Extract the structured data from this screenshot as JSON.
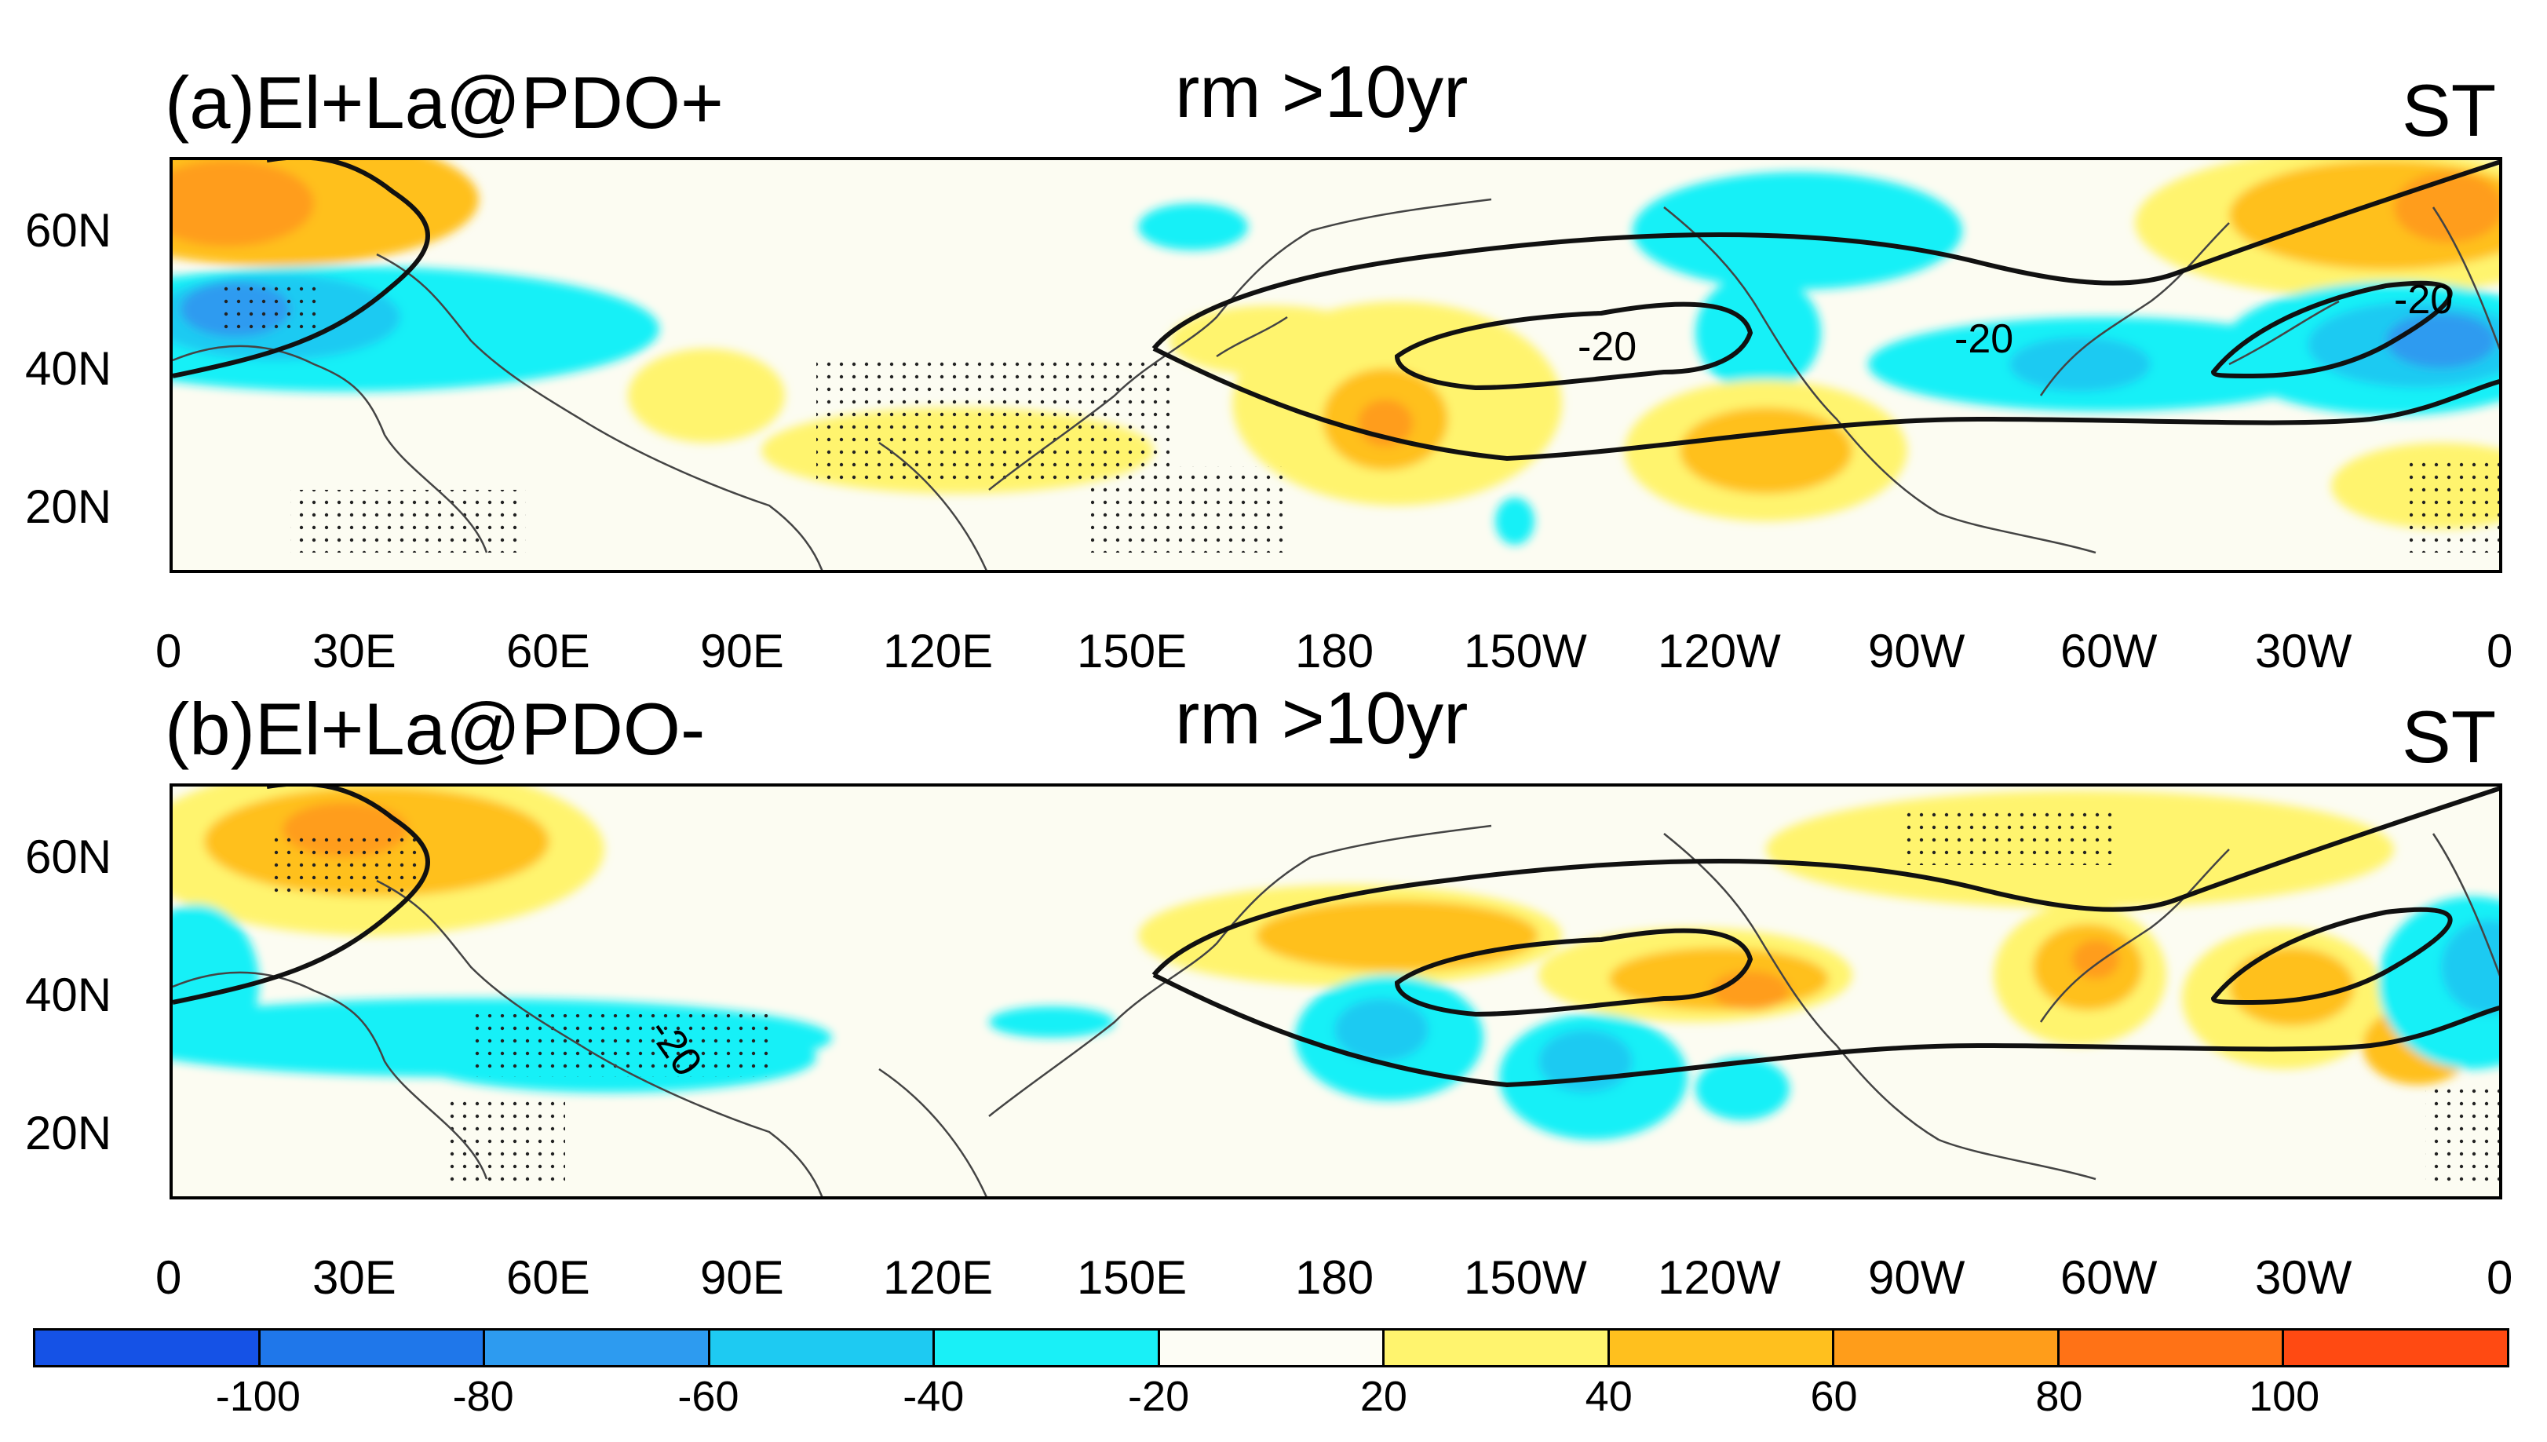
{
  "panels": [
    {
      "id": "a",
      "title_left": "(a)El+La@PDO+",
      "title_center": "rm >10yr",
      "title_right": "ST",
      "contour_labels": [
        "-20",
        "-20",
        "-20"
      ]
    },
    {
      "id": "b",
      "title_left": "(b)El+La@PDO-",
      "title_center": "rm >10yr",
      "title_right": "ST",
      "contour_labels": [
        "-20"
      ]
    }
  ],
  "lat_labels": [
    "60N",
    "40N",
    "20N"
  ],
  "lon_labels": [
    "0",
    "30E",
    "60E",
    "90E",
    "120E",
    "150E",
    "180",
    "150W",
    "120W",
    "90W",
    "60W",
    "30W",
    "0"
  ],
  "colorbar": {
    "tick_labels": [
      "-100",
      "-80",
      "-60",
      "-40",
      "-20",
      "20",
      "40",
      "60",
      "80",
      "100"
    ],
    "colors": [
      "#1552e6",
      "#1f77ea",
      "#2d9bf0",
      "#1ecaf2",
      "#19f0f7",
      "#fdfdf5",
      "#fff46e",
      "#ffc01e",
      "#ff9d1a",
      "#ff7216",
      "#ff4a12"
    ]
  }
}
